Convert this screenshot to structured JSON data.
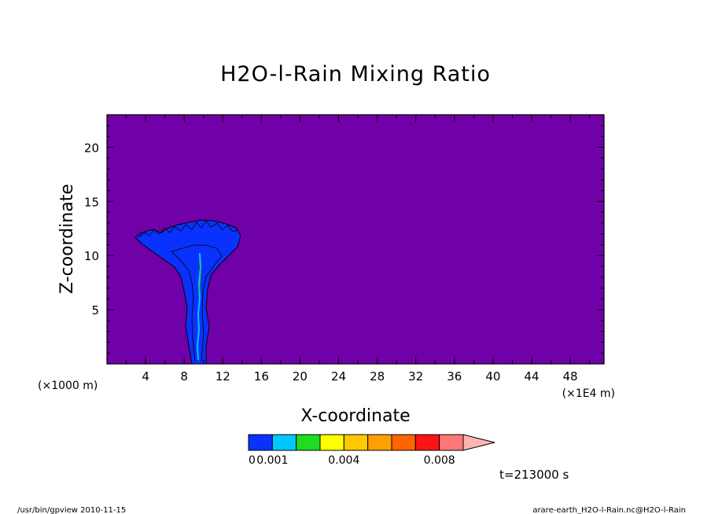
{
  "chart_data": {
    "type": "heatmap",
    "title": "H2O-l-Rain Mixing Ratio",
    "xlabel": "X-coordinate",
    "ylabel": "Z-coordinate",
    "x_unit_left": "(×1000 m)",
    "x_unit_right": "(×1E4 m)",
    "x_ticks": [
      "4",
      "8",
      "12",
      "16",
      "20",
      "24",
      "28",
      "32",
      "36",
      "40",
      "44",
      "48"
    ],
    "x_tick_values": [
      4,
      8,
      12,
      16,
      20,
      24,
      28,
      32,
      36,
      40,
      44,
      48
    ],
    "y_ticks": [
      "5",
      "10",
      "15",
      "20"
    ],
    "y_tick_values": [
      5,
      10,
      15,
      20
    ],
    "xlim": [
      0,
      51.5
    ],
    "ylim": [
      0,
      23
    ],
    "background_color": "#7000A8",
    "colorbar": {
      "colors": [
        "#0A32FF",
        "#00C8FF",
        "#1EDC1E",
        "#FFFF00",
        "#FFC800",
        "#FFA000",
        "#FF6400",
        "#FF1414",
        "#FF7878",
        "#FFB4B4"
      ],
      "labels": [
        "0",
        "0.001",
        "0.004",
        "0.008"
      ],
      "label_values": [
        0,
        0.001,
        0.004,
        0.008
      ]
    },
    "annotation": "t=213000 s"
  },
  "footer": {
    "left": "/usr/bin/gpview   2010-11-15",
    "right": "arare-earth_H2O-l-Rain.nc@H2O-l-Rain"
  }
}
